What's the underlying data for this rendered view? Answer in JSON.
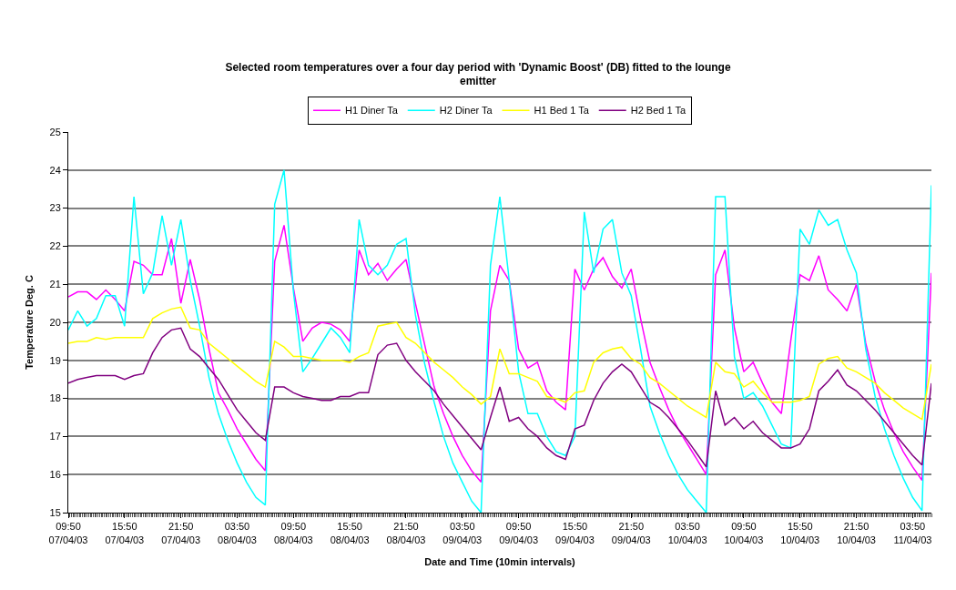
{
  "chart_data": {
    "type": "line",
    "title": "Selected room temperatures over a four day period with 'Dynamic Boost' (DB) fitted to the lounge emitter",
    "xlabel": "Date and Time (10min intervals)",
    "ylabel": "Temperature Deg. C",
    "categories": [
      "09:50\n07/04/03",
      null,
      null,
      null,
      null,
      null,
      "15:50\n07/04/03",
      null,
      null,
      null,
      null,
      null,
      "21:50\n07/04/03",
      null,
      null,
      null,
      null,
      null,
      "03:50\n08/04/03",
      null,
      null,
      null,
      null,
      null,
      "09:50\n08/04/03",
      null,
      null,
      null,
      null,
      null,
      "15:50\n08/04/03",
      null,
      null,
      null,
      null,
      null,
      "21:50\n08/04/03",
      null,
      null,
      null,
      null,
      null,
      "03:50\n09/04/03",
      null,
      null,
      null,
      null,
      null,
      "09:50\n09/04/03",
      null,
      null,
      null,
      null,
      null,
      "15:50\n09/04/03",
      null,
      null,
      null,
      null,
      null,
      "21:50\n09/04/03",
      null,
      null,
      null,
      null,
      null,
      "03:50\n10/04/03",
      null,
      null,
      null,
      null,
      null,
      "09:50\n10/04/03",
      null,
      null,
      null,
      null,
      null,
      "15:50\n10/04/03",
      null,
      null,
      null,
      null,
      null,
      "21:50\n10/04/03",
      null,
      null,
      null,
      null,
      null,
      "03:50\n11/04/03",
      null,
      null
    ],
    "series": [
      {
        "name": "H1 Diner Ta",
        "color": "#ff00ff",
        "values": [
          20.67,
          20.8,
          20.8,
          20.6,
          20.85,
          20.6,
          20.3,
          21.6,
          21.5,
          21.25,
          21.25,
          22.2,
          20.5,
          21.65,
          20.6,
          19.3,
          18.15,
          17.7,
          17.2,
          16.8,
          16.4,
          16.1,
          21.6,
          22.55,
          20.9,
          19.5,
          19.85,
          20.0,
          19.95,
          19.8,
          19.5,
          21.9,
          21.25,
          21.55,
          21.1,
          21.4,
          21.65,
          20.5,
          19.4,
          18.3,
          17.6,
          17.0,
          16.5,
          16.1,
          15.8,
          20.3,
          21.5,
          21.1,
          19.3,
          18.8,
          18.95,
          18.2,
          17.9,
          17.7,
          21.4,
          20.85,
          21.4,
          21.7,
          21.2,
          20.9,
          21.4,
          20.1,
          18.95,
          18.3,
          17.7,
          17.2,
          16.8,
          16.4,
          16.0,
          21.25,
          21.9,
          19.85,
          18.7,
          18.95,
          18.4,
          17.9,
          17.6,
          19.5,
          21.25,
          21.1,
          21.75,
          20.85,
          20.6,
          20.3,
          21.0,
          19.45,
          18.45,
          17.7,
          17.1,
          16.6,
          16.2,
          15.85,
          21.3
        ]
      },
      {
        "name": "H2 Diner Ta",
        "color": "#00ffff",
        "values": [
          19.8,
          20.3,
          19.9,
          20.1,
          20.7,
          20.7,
          19.9,
          23.3,
          20.75,
          21.3,
          22.8,
          21.5,
          22.7,
          21.1,
          19.9,
          18.55,
          17.6,
          16.9,
          16.3,
          15.8,
          15.4,
          15.2,
          23.1,
          24.0,
          20.8,
          18.7,
          19.05,
          19.45,
          19.85,
          19.6,
          19.2,
          22.7,
          21.5,
          21.25,
          21.5,
          22.05,
          22.2,
          20.2,
          18.9,
          17.9,
          17.0,
          16.3,
          15.8,
          15.3,
          15.0,
          21.5,
          23.3,
          21.1,
          18.7,
          17.6,
          17.6,
          17.0,
          16.6,
          16.5,
          17.0,
          22.9,
          21.3,
          22.45,
          22.7,
          21.3,
          20.7,
          19.3,
          17.8,
          17.1,
          16.5,
          16.0,
          15.6,
          15.3,
          15.0,
          23.3,
          23.3,
          19.1,
          18.0,
          18.15,
          17.8,
          17.3,
          16.8,
          16.7,
          22.45,
          22.05,
          22.95,
          22.55,
          22.7,
          21.9,
          21.3,
          19.3,
          18.05,
          17.2,
          16.5,
          15.9,
          15.4,
          15.05,
          23.6
        ]
      },
      {
        "name": "H1 Bed 1 Ta",
        "color": "#ffff00",
        "values": [
          19.45,
          19.5,
          19.5,
          19.6,
          19.55,
          19.6,
          19.6,
          19.6,
          19.6,
          20.1,
          20.25,
          20.35,
          20.4,
          19.85,
          19.8,
          19.45,
          19.25,
          19.05,
          18.85,
          18.65,
          18.45,
          18.3,
          19.5,
          19.35,
          19.1,
          19.1,
          19.05,
          19.0,
          19.0,
          19.0,
          18.95,
          19.1,
          19.2,
          19.9,
          19.95,
          20.0,
          19.6,
          19.45,
          19.2,
          18.95,
          18.75,
          18.55,
          18.3,
          18.1,
          17.85,
          18.05,
          19.3,
          18.65,
          18.65,
          18.55,
          18.45,
          18.05,
          18.0,
          17.9,
          18.15,
          18.2,
          18.95,
          19.2,
          19.3,
          19.35,
          19.05,
          18.9,
          18.55,
          18.4,
          18.2,
          18.0,
          17.8,
          17.65,
          17.5,
          18.95,
          18.7,
          18.65,
          18.3,
          18.45,
          18.15,
          17.9,
          17.9,
          17.9,
          17.95,
          18.05,
          18.9,
          19.05,
          19.1,
          18.8,
          18.7,
          18.55,
          18.4,
          18.15,
          17.95,
          17.75,
          17.6,
          17.45,
          18.9
        ]
      },
      {
        "name": "H2 Bed 1 Ta",
        "color": "#800080",
        "values": [
          18.4,
          18.5,
          18.55,
          18.6,
          18.6,
          18.6,
          18.5,
          18.6,
          18.65,
          19.2,
          19.6,
          19.8,
          19.85,
          19.3,
          19.1,
          18.8,
          18.5,
          18.1,
          17.7,
          17.4,
          17.1,
          16.9,
          18.3,
          18.3,
          18.15,
          18.05,
          18.0,
          17.95,
          17.95,
          18.05,
          18.05,
          18.15,
          18.15,
          19.15,
          19.4,
          19.45,
          19.0,
          18.7,
          18.45,
          18.2,
          17.85,
          17.55,
          17.25,
          16.95,
          16.65,
          17.5,
          18.3,
          17.4,
          17.5,
          17.2,
          17.0,
          16.7,
          16.5,
          16.4,
          17.2,
          17.3,
          17.95,
          18.4,
          18.7,
          18.9,
          18.7,
          18.3,
          17.9,
          17.75,
          17.5,
          17.2,
          16.9,
          16.55,
          16.2,
          18.2,
          17.3,
          17.5,
          17.2,
          17.4,
          17.1,
          16.9,
          16.7,
          16.7,
          16.8,
          17.2,
          18.2,
          18.45,
          18.75,
          18.35,
          18.2,
          17.95,
          17.7,
          17.4,
          17.1,
          16.8,
          16.5,
          16.25,
          18.4
        ]
      }
    ],
    "ylim": [
      15,
      25
    ],
    "yticks": [
      15,
      16,
      17,
      18,
      19,
      20,
      21,
      22,
      23,
      24,
      25
    ],
    "grid": "y",
    "legend": "top",
    "marker": "none",
    "line_style": "solid"
  }
}
